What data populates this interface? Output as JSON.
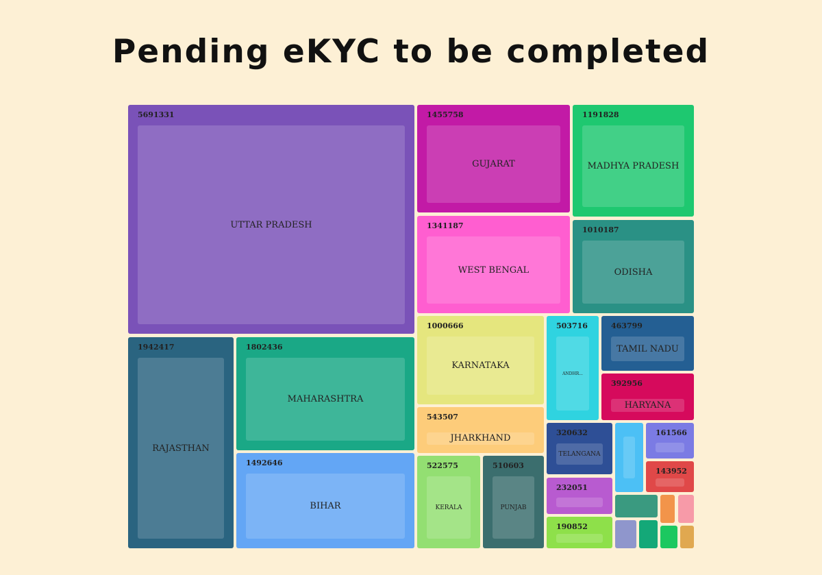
{
  "chart_data": {
    "type": "treemap",
    "title": "Pending eKYC to be completed",
    "items": [
      {
        "label": "UTTAR PRADESH",
        "value": 5691331,
        "color": "#7a52b8"
      },
      {
        "label": "RAJASTHAN",
        "value": 1942417,
        "color": "#2a6480"
      },
      {
        "label": "MAHARASHTRA",
        "value": 1802436,
        "color": "#1aa886"
      },
      {
        "label": "BIHAR",
        "value": 1492646,
        "color": "#63a6f5"
      },
      {
        "label": "GUJARAT",
        "value": 1455758,
        "color": "#c21aa6"
      },
      {
        "label": "WEST BENGAL",
        "value": 1341187,
        "color": "#ff5ed0"
      },
      {
        "label": "MADHYA PRADESH",
        "value": 1191828,
        "color": "#1ec870"
      },
      {
        "label": "ODISHA",
        "value": 1010187,
        "color": "#2a9185"
      },
      {
        "label": "KARNATAKA",
        "value": 1000666,
        "color": "#e5e67e"
      },
      {
        "label": "JHARKHAND",
        "value": 543507,
        "color": "#fdcc7a"
      },
      {
        "label": "KERALA",
        "value": 522575,
        "color": "#93df72"
      },
      {
        "label": "PUNJAB",
        "value": 510603,
        "color": "#3b6e6e"
      },
      {
        "label": "ANDHR...",
        "value": 503716,
        "color": "#2fd3e0"
      },
      {
        "label": "TAMIL NADU",
        "value": 463799,
        "color": "#245f93"
      },
      {
        "label": "HARYANA",
        "value": 392956,
        "color": "#d60a5c"
      },
      {
        "label": "TELANGANA",
        "value": 320632,
        "color": "#2e4f96"
      },
      {
        "label": "",
        "value": 232051,
        "color": "#b85bd0"
      },
      {
        "label": "",
        "value": 190852,
        "color": "#8ee04a"
      },
      {
        "label": "",
        "value": null,
        "color": "#4cc0f5"
      },
      {
        "label": "",
        "value": 161566,
        "color": "#7b7be4"
      },
      {
        "label": "",
        "value": 143952,
        "color": "#e04848"
      },
      {
        "label": "",
        "value": null,
        "color": "#3a9a80"
      },
      {
        "label": "",
        "value": null,
        "color": "#f2944a"
      },
      {
        "label": "",
        "value": null,
        "color": "#f79aa8"
      },
      {
        "label": "",
        "value": null,
        "color": "#8f96cc"
      },
      {
        "label": "",
        "value": null,
        "color": "#14a878"
      },
      {
        "label": "",
        "value": null,
        "color": "#1cc860"
      },
      {
        "label": "",
        "value": null,
        "color": "#e0a850"
      }
    ]
  }
}
